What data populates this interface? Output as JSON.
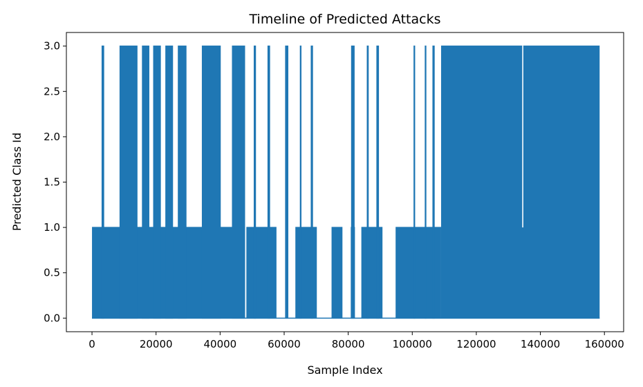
{
  "chart_data": {
    "type": "line",
    "title": "Timeline of Predicted Attacks",
    "xlabel": "Sample Index",
    "ylabel": "Predicted Class Id",
    "xlim": [
      -8000,
      166000
    ],
    "ylim": [
      -0.15,
      3.15
    ],
    "xticks": [
      0,
      20000,
      40000,
      60000,
      80000,
      100000,
      120000,
      140000,
      160000
    ],
    "xtick_labels": [
      "0",
      "20000",
      "40000",
      "60000",
      "80000",
      "100000",
      "120000",
      "140000",
      "160000"
    ],
    "yticks": [
      0.0,
      0.5,
      1.0,
      1.5,
      2.0,
      2.5,
      3.0
    ],
    "ytick_labels": [
      "0.0",
      "0.5",
      "1.0",
      "1.5",
      "2.0",
      "2.5",
      "3.0"
    ],
    "grid": false,
    "series": [
      {
        "color": "#1f77b4",
        "baseline": 0,
        "segments": [
          {
            "x_start": 0,
            "x_end": 47800,
            "low": 0,
            "high": 1
          },
          {
            "x_start": 47800,
            "x_end": 48200,
            "low": 0,
            "high": 0
          },
          {
            "x_start": 48200,
            "x_end": 57600,
            "low": 0,
            "high": 1
          },
          {
            "x_start": 57600,
            "x_end": 63500,
            "low": 0,
            "high": 0
          },
          {
            "x_start": 63500,
            "x_end": 70200,
            "low": 0,
            "high": 1
          },
          {
            "x_start": 70200,
            "x_end": 74800,
            "low": 0,
            "high": 0
          },
          {
            "x_start": 74800,
            "x_end": 78200,
            "low": 0,
            "high": 1
          },
          {
            "x_start": 78200,
            "x_end": 80800,
            "low": 0,
            "high": 0
          },
          {
            "x_start": 80800,
            "x_end": 82100,
            "low": 0,
            "high": 1
          },
          {
            "x_start": 82100,
            "x_end": 84100,
            "low": 0,
            "high": 0
          },
          {
            "x_start": 84100,
            "x_end": 90700,
            "low": 0,
            "high": 1
          },
          {
            "x_start": 90700,
            "x_end": 94800,
            "low": 0,
            "high": 0
          },
          {
            "x_start": 94800,
            "x_end": 109000,
            "low": 0,
            "high": 1
          },
          {
            "x_start": 109000,
            "x_end": 158500,
            "low": 0,
            "high": 3
          }
        ],
        "spikes": [
          {
            "x_start": 3000,
            "x_end": 3800,
            "value": 3
          },
          {
            "x_start": 8600,
            "x_end": 14200,
            "value": 3
          },
          {
            "x_start": 15600,
            "x_end": 17900,
            "value": 3
          },
          {
            "x_start": 19100,
            "x_end": 21500,
            "value": 3
          },
          {
            "x_start": 22900,
            "x_end": 25300,
            "value": 3
          },
          {
            "x_start": 26800,
            "x_end": 29500,
            "value": 3
          },
          {
            "x_start": 34300,
            "x_end": 40200,
            "value": 3
          },
          {
            "x_start": 43700,
            "x_end": 47800,
            "value": 3
          },
          {
            "x_start": 50500,
            "x_end": 51200,
            "value": 3
          },
          {
            "x_start": 54800,
            "x_end": 55600,
            "value": 3
          },
          {
            "x_start": 60300,
            "x_end": 61300,
            "value": 3
          },
          {
            "x_start": 64900,
            "x_end": 65400,
            "value": 3
          },
          {
            "x_start": 68300,
            "x_end": 69000,
            "value": 3
          },
          {
            "x_start": 80900,
            "x_end": 82000,
            "value": 3
          },
          {
            "x_start": 85800,
            "x_end": 86400,
            "value": 3
          },
          {
            "x_start": 88800,
            "x_end": 89600,
            "value": 3
          },
          {
            "x_start": 100400,
            "x_end": 100900,
            "value": 3
          },
          {
            "x_start": 103900,
            "x_end": 104400,
            "value": 3
          },
          {
            "x_start": 106300,
            "x_end": 107000,
            "value": 3
          }
        ],
        "notches": [
          {
            "x_start": 134300,
            "x_end": 134700,
            "value": 1
          }
        ]
      }
    ]
  }
}
